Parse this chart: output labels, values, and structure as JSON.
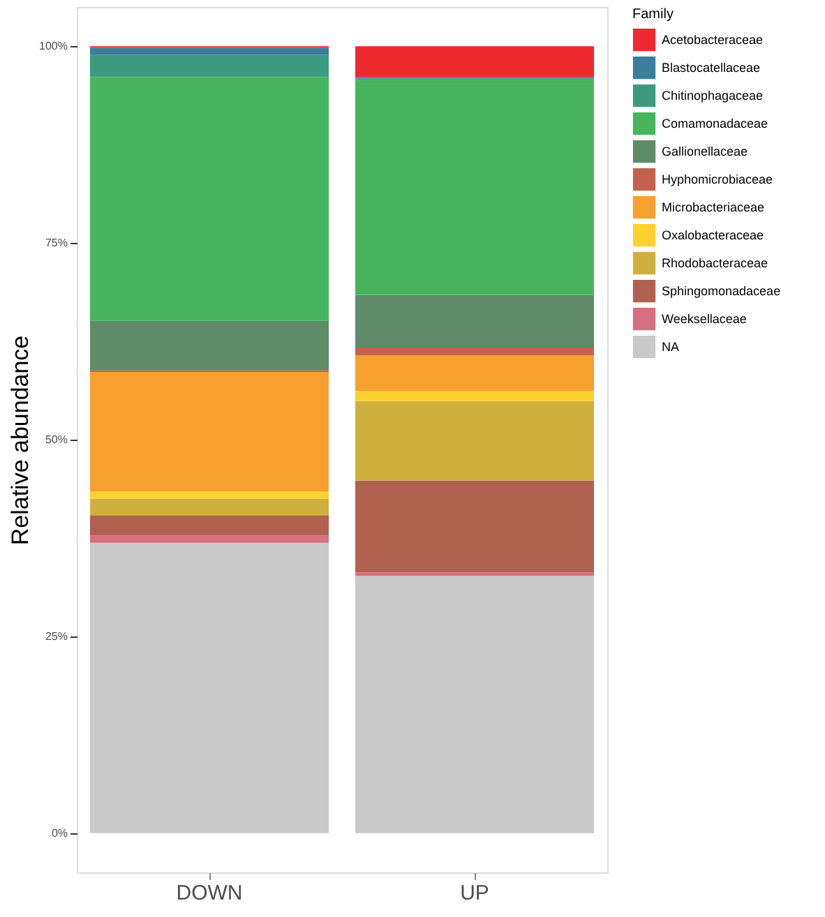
{
  "chart_data": {
    "type": "bar",
    "stacked": true,
    "ylabel": "Relative abundance",
    "legend_title": "Family",
    "legend": "right",
    "grid": false,
    "categories": [
      "DOWN",
      "UP"
    ],
    "ylim": [
      -5,
      105
    ],
    "yticks": [
      {
        "value": 0,
        "label": "0%"
      },
      {
        "value": 25,
        "label": "25%"
      },
      {
        "value": 50,
        "label": "50%"
      },
      {
        "value": 75,
        "label": "75%"
      },
      {
        "value": 100,
        "label": "100%"
      }
    ],
    "series": [
      {
        "name": "NA",
        "color": "#c8c9c8",
        "values": [
          36.9,
          32.7
        ]
      },
      {
        "name": "Weeksellaceae",
        "color": "#d4707f",
        "values": [
          0.9,
          0.4
        ]
      },
      {
        "name": "Sphingomonadaceae",
        "color": "#b16150",
        "values": [
          2.6,
          11.7
        ]
      },
      {
        "name": "Rhodobacteraceae",
        "color": "#d0b03d",
        "values": [
          2.1,
          10.1
        ]
      },
      {
        "name": "Oxalobacteraceae",
        "color": "#fdd12f",
        "values": [
          0.9,
          1.3
        ]
      },
      {
        "name": "Microbacteriaceae",
        "color": "#f79f2f",
        "values": [
          15.2,
          4.5
        ]
      },
      {
        "name": "Hyphomicrobiaceae",
        "color": "#c4624f",
        "values": [
          0.2,
          1.0
        ]
      },
      {
        "name": "Gallionellaceae",
        "color": "#5f8b69",
        "values": [
          6.3,
          6.7
        ]
      },
      {
        "name": "Comamonadaceae",
        "color": "#47b55e",
        "values": [
          31.0,
          27.3
        ]
      },
      {
        "name": "Chitinophagaceae",
        "color": "#3e9a7f",
        "values": [
          2.8,
          0.2
        ]
      },
      {
        "name": "Blastocatellaceae",
        "color": "#3a7f9c",
        "values": [
          0.9,
          0.2
        ]
      },
      {
        "name": "Acetobacteraceae",
        "color": "#ee2a2f",
        "values": [
          0.2,
          3.9
        ]
      }
    ]
  }
}
